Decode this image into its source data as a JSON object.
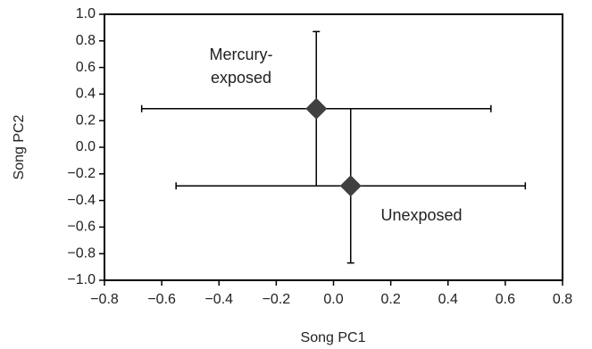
{
  "chart_data": {
    "type": "scatter",
    "xlabel": "Song PC1",
    "ylabel": "Song PC2",
    "xlim": [
      -0.8,
      0.8
    ],
    "ylim": [
      -1.0,
      1.0
    ],
    "xticks": [
      {
        "value": -0.8,
        "label": "−0.8"
      },
      {
        "value": -0.6,
        "label": "−0.6"
      },
      {
        "value": -0.4,
        "label": "−0.4"
      },
      {
        "value": -0.2,
        "label": "−0.2"
      },
      {
        "value": 0,
        "label": "0.0"
      },
      0.2,
      0.4,
      0.6,
      0.8
    ],
    "yticks": [
      {
        "value": 1,
        "label": "1.0"
      },
      0.8,
      0.6,
      0.4,
      0.2,
      {
        "value": 0,
        "label": "0.0"
      },
      {
        "value": -0.2,
        "label": "−0.2"
      },
      {
        "value": -0.4,
        "label": "−0.4"
      },
      {
        "value": -0.6,
        "label": "−0.6"
      },
      {
        "value": -0.8,
        "label": "−0.8"
      },
      {
        "value": -1,
        "label": "−1.0"
      }
    ],
    "series": [
      {
        "color": "#404040",
        "x": [
          -0.06,
          0.06
        ],
        "values": [
          0.29,
          -0.29
        ],
        "x_error": [
          0.61,
          0.61
        ],
        "y_error": [
          0.58,
          0.58
        ]
      }
    ],
    "annotations": [
      {
        "lines": [
          "Mercury-",
          "exposed"
        ]
      },
      {
        "lines": [
          "Unexposed"
        ]
      }
    ]
  }
}
